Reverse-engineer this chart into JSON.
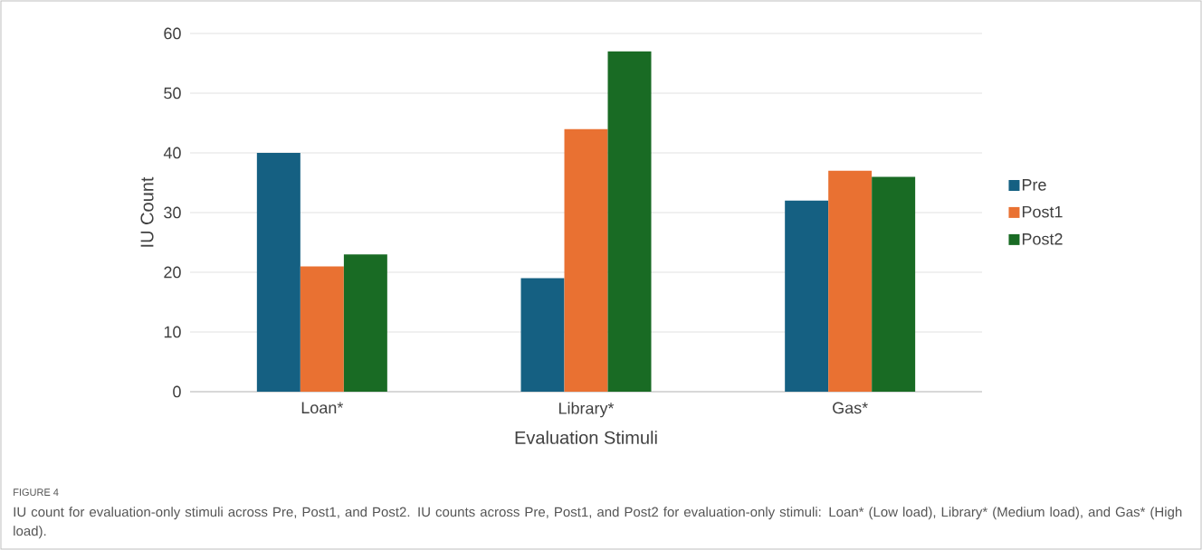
{
  "chart_data": {
    "type": "bar",
    "categories": [
      "Loan*",
      "Library*",
      "Gas*"
    ],
    "series": [
      {
        "name": "Pre",
        "color": "#156082",
        "values": [
          40,
          19,
          32
        ]
      },
      {
        "name": "Post1",
        "color": "#e97132",
        "values": [
          21,
          44,
          37
        ]
      },
      {
        "name": "Post2",
        "color": "#196b24",
        "values": [
          23,
          57,
          36
        ]
      }
    ],
    "xlabel": "Evaluation Stimuli",
    "ylabel": "IU Count",
    "ylim": [
      0,
      60
    ],
    "yticks": [
      0,
      10,
      20,
      30,
      40,
      50,
      60
    ],
    "grid": "y",
    "legend": "right",
    "annotations": [
      "FIGURE 4",
      "IU count for evaluation-only stimuli across Pre, Post1, and Post2. IU counts across Pre, Post1, and Post2 for evaluation-only stimuli: Loan* (Low load), Library* (Medium load), and Gas* (High load)."
    ]
  }
}
